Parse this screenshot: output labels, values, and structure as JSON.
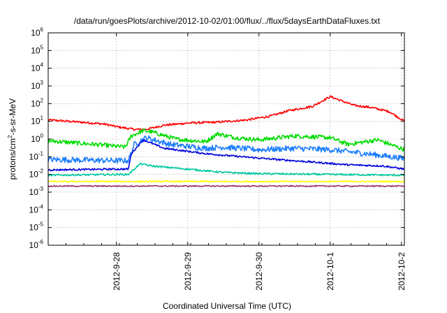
{
  "chart_data": {
    "type": "line",
    "title": "/data/run/goesPlots/archive/2012-10-02/01:00/flux/../flux/5daysEarthDataFluxes.txt",
    "xlabel": "Coordinated Universal Time (UTC)",
    "ylabel": "protons/cm²-s-sr-MeV",
    "yscale": "log",
    "ylim": [
      1e-06,
      1000000.0
    ],
    "xlim": [
      "2012-09-27T01:00",
      "2012-10-02T01:00"
    ],
    "grid": true,
    "legend": "none",
    "x_ticks": [
      "2012-9-28",
      "2012-9-29",
      "2012-9-30",
      "2012-10-1",
      "2012-10-2"
    ],
    "y_ticks": [
      {
        "value": 1e-06,
        "base": "10",
        "exp": "-6"
      },
      {
        "value": 1e-05,
        "base": "10",
        "exp": "-5"
      },
      {
        "value": 0.0001,
        "base": "10",
        "exp": "-4"
      },
      {
        "value": 0.001,
        "base": "10",
        "exp": "-3"
      },
      {
        "value": 0.01,
        "base": "10",
        "exp": "-2"
      },
      {
        "value": 0.1,
        "base": "10",
        "exp": "-1"
      },
      {
        "value": 1,
        "base": "10",
        "exp": "0"
      },
      {
        "value": 10,
        "base": "10",
        "exp": "1"
      },
      {
        "value": 100,
        "base": "10",
        "exp": "2"
      },
      {
        "value": 1000,
        "base": "10",
        "exp": "3"
      },
      {
        "value": 10000,
        "base": "10",
        "exp": "4"
      },
      {
        "value": 100000,
        "base": "10",
        "exp": "5"
      },
      {
        "value": 1000000,
        "base": "10",
        "exp": "6"
      }
    ],
    "series": [
      {
        "color": "#ff0000",
        "noise": 0.06,
        "x": [
          "2012-09-27T01:00",
          "2012-09-27T12:00",
          "2012-09-27T20:00",
          "2012-09-28T00:00",
          "2012-09-28T06:00",
          "2012-09-28T10:00",
          "2012-09-28T16:00",
          "2012-09-29T00:00",
          "2012-09-29T10:00",
          "2012-09-29T20:00",
          "2012-09-30T04:00",
          "2012-09-30T10:00",
          "2012-09-30T18:00",
          "2012-10-01T00:00",
          "2012-10-01T08:00",
          "2012-10-01T14:00",
          "2012-10-01T20:00",
          "2012-10-02T01:00"
        ],
        "y": [
          12,
          9,
          7,
          5,
          3.5,
          3.5,
          6,
          8,
          9,
          12,
          20,
          40,
          70,
          250,
          80,
          60,
          35,
          10
        ]
      },
      {
        "color": "#00dd00",
        "noise": 0.12,
        "x": [
          "2012-09-27T01:00",
          "2012-09-27T20:00",
          "2012-09-28T03:00",
          "2012-09-28T05:00",
          "2012-09-28T09:00",
          "2012-09-28T12:00",
          "2012-09-28T20:00",
          "2012-09-29T06:00",
          "2012-09-29T10:00",
          "2012-09-29T16:00",
          "2012-09-30T00:00",
          "2012-09-30T12:00",
          "2012-10-01T00:00",
          "2012-10-01T06:00",
          "2012-10-01T16:00",
          "2012-10-02T01:00"
        ],
        "y": [
          0.8,
          0.45,
          0.35,
          1.5,
          3.0,
          2.5,
          1.0,
          0.7,
          2.0,
          1.2,
          0.9,
          1.5,
          1.2,
          0.5,
          0.9,
          0.25
        ]
      },
      {
        "color": "#1f7fff",
        "noise": 0.16,
        "x": [
          "2012-09-27T01:00",
          "2012-09-28T00:00",
          "2012-09-28T04:00",
          "2012-09-28T06:00",
          "2012-09-28T10:00",
          "2012-09-28T18:00",
          "2012-09-29T06:00",
          "2012-09-29T12:00",
          "2012-09-30T00:00",
          "2012-09-30T12:00",
          "2012-10-01T00:00",
          "2012-10-01T12:00",
          "2012-10-02T01:00"
        ],
        "y": [
          0.07,
          0.06,
          0.06,
          0.5,
          1.2,
          0.5,
          0.3,
          0.35,
          0.25,
          0.3,
          0.25,
          0.15,
          0.08
        ]
      },
      {
        "color": "#0000dd",
        "noise": 0.05,
        "x": [
          "2012-09-27T01:00",
          "2012-09-28T00:00",
          "2012-09-28T04:00",
          "2012-09-28T05:00",
          "2012-09-28T09:00",
          "2012-09-28T16:00",
          "2012-09-29T06:00",
          "2012-09-29T18:00",
          "2012-09-30T06:00",
          "2012-09-30T18:00",
          "2012-10-01T06:00",
          "2012-10-01T18:00",
          "2012-10-02T01:00"
        ],
        "y": [
          0.018,
          0.02,
          0.02,
          0.15,
          0.9,
          0.3,
          0.15,
          0.1,
          0.07,
          0.05,
          0.035,
          0.03,
          0.02
        ]
      },
      {
        "color": "#00c8a0",
        "noise": 0.05,
        "x": [
          "2012-09-27T01:00",
          "2012-09-28T00:00",
          "2012-09-28T04:00",
          "2012-09-28T08:00",
          "2012-09-28T12:00",
          "2012-09-29T00:00",
          "2012-09-29T12:00",
          "2012-09-30T00:00",
          "2012-10-01T00:00",
          "2012-10-02T01:00"
        ],
        "y": [
          0.009,
          0.01,
          0.01,
          0.04,
          0.03,
          0.02,
          0.013,
          0.011,
          0.01,
          0.009
        ]
      },
      {
        "color": "#ffff00",
        "noise": 0.04,
        "x": [
          "2012-09-27T01:00",
          "2012-10-02T01:00"
        ],
        "y": [
          0.004,
          0.004
        ]
      },
      {
        "color": "#993377",
        "noise": 0.035,
        "x": [
          "2012-09-27T01:00",
          "2012-10-02T01:00"
        ],
        "y": [
          0.0022,
          0.0022
        ]
      }
    ]
  }
}
